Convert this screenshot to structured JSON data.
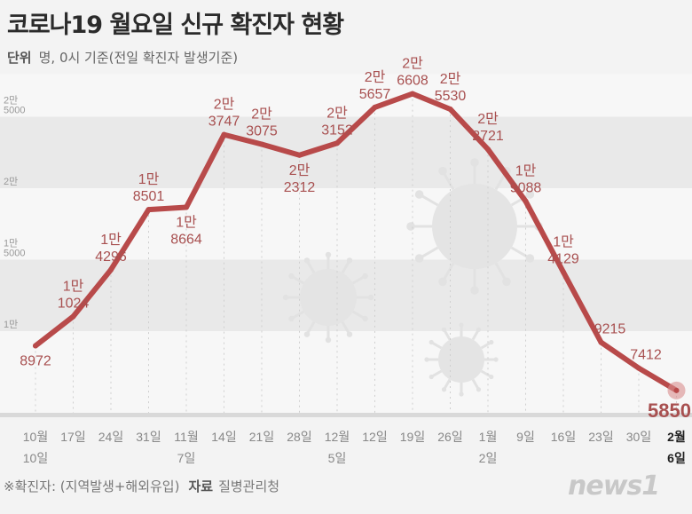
{
  "header": {
    "title": "코로나19 월요일 신규 확진자 현황",
    "unit_label": "단위",
    "unit_text": "명, 0시 기준(전일 확진자 발생기준)"
  },
  "footer": {
    "note": "※확진자: (지역발생+해외유입)",
    "source_label": "자료",
    "source": "질병관리청",
    "logo": "news1"
  },
  "colors": {
    "line": "#b84a4a",
    "label": "#a85050",
    "band": "#e9e9e9",
    "bg": "#f7f7f7"
  },
  "chart_data": {
    "type": "line",
    "title": "코로나19 월요일 신규 확진자 현황",
    "xlabel": "",
    "ylabel": "명",
    "ylim": [
      4300,
      28000
    ],
    "y_ticks": [
      {
        "value": 10000,
        "label": [
          "1만"
        ]
      },
      {
        "value": 15000,
        "label": [
          "1만",
          "5000"
        ]
      },
      {
        "value": 20000,
        "label": [
          "2만"
        ]
      },
      {
        "value": 25000,
        "label": [
          "2만",
          "5000"
        ]
      }
    ],
    "categories": [
      [
        "10월",
        "10일"
      ],
      [
        "17일"
      ],
      [
        "24일"
      ],
      [
        "31일"
      ],
      [
        "11월",
        "7일"
      ],
      [
        "14일"
      ],
      [
        "21일"
      ],
      [
        "28일"
      ],
      [
        "12월",
        "5일"
      ],
      [
        "12일"
      ],
      [
        "19일"
      ],
      [
        "26일"
      ],
      [
        "1월",
        "2일"
      ],
      [
        "9일"
      ],
      [
        "16일"
      ],
      [
        "23일"
      ],
      [
        "30일"
      ],
      [
        "2월",
        "6일"
      ]
    ],
    "values": [
      8972,
      11024,
      14296,
      18501,
      18664,
      23747,
      23075,
      22312,
      23152,
      25657,
      26608,
      25530,
      22721,
      19088,
      14129,
      9215,
      7412,
      5850
    ],
    "data_labels": [
      [
        "8972"
      ],
      [
        "1만",
        "1024"
      ],
      [
        "1만",
        "4296"
      ],
      [
        "1만",
        "8501"
      ],
      [
        "1만",
        "8664"
      ],
      [
        "2만",
        "3747"
      ],
      [
        "2만",
        "3075"
      ],
      [
        "2만",
        "2312"
      ],
      [
        "2만",
        "3152"
      ],
      [
        "2만",
        "5657"
      ],
      [
        "2만",
        "6608"
      ],
      [
        "2만",
        "5530"
      ],
      [
        "2만",
        "2721"
      ],
      [
        "1만",
        "9088"
      ],
      [
        "1만",
        "4129"
      ],
      [
        "9215"
      ],
      [
        "7412"
      ],
      [
        "5850"
      ]
    ]
  }
}
